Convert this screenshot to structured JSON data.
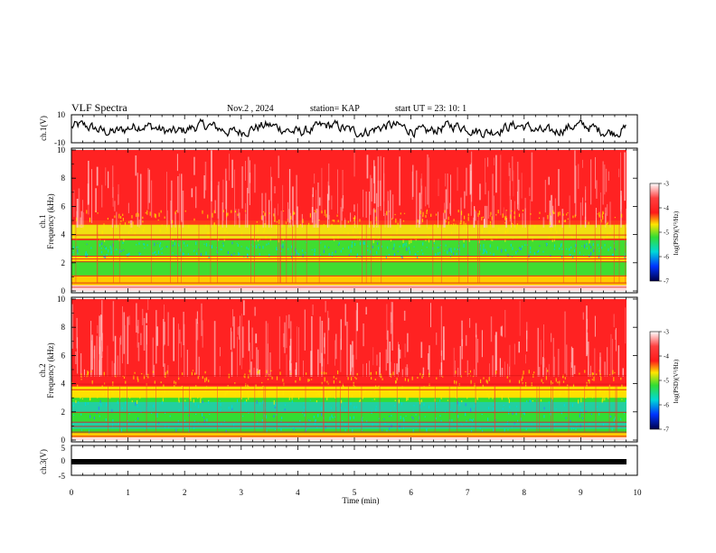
{
  "header": {
    "title": "VLF Spectra",
    "date": "Nov.2 , 2024",
    "station": "station= KAP",
    "start": "start UT = 23: 10: 1"
  },
  "chart_data": [
    {
      "type": "line",
      "name": "ch1-waveform",
      "ylabel": "ch.1(V)",
      "ylim": [
        -10,
        10
      ],
      "yticks": [
        "10",
        "-10"
      ],
      "xlim": [
        0,
        10
      ]
    },
    {
      "type": "heatmap",
      "name": "ch1-spectrogram",
      "ylabel": "ch.1 Frequency (kHz)",
      "ylim": [
        0,
        10
      ],
      "yticks": [
        "0",
        "2",
        "4",
        "6",
        "8",
        "10"
      ],
      "xlim": [
        0,
        10
      ],
      "colorbar": {
        "label": "log(PSD)(V²/Hz)",
        "range": [
          -7,
          -3
        ],
        "ticks": [
          "-3",
          "-4",
          "-5",
          "-6",
          "-7"
        ]
      }
    },
    {
      "type": "heatmap",
      "name": "ch2-spectrogram",
      "ylabel": "ch.2 Frequency (kHz)",
      "ylim": [
        0,
        10
      ],
      "yticks": [
        "0",
        "2",
        "4",
        "6",
        "8",
        "10"
      ],
      "xlim": [
        0,
        10
      ],
      "colorbar": {
        "label": "log(PSD)(V²/Hz)",
        "range": [
          -7,
          -3
        ],
        "ticks": [
          "-3",
          "-4",
          "-5",
          "-6",
          "-7"
        ]
      }
    },
    {
      "type": "line",
      "name": "ch3-waveform",
      "ylabel": "ch.3(V)",
      "ylim": [
        -5,
        5
      ],
      "yticks": [
        "5",
        "0",
        "-5"
      ],
      "xlim": [
        0,
        10
      ]
    }
  ],
  "xaxis": {
    "label": "Time (min)",
    "ticks": [
      "0",
      "1",
      "2",
      "3",
      "4",
      "5",
      "6",
      "7",
      "8",
      "9",
      "10"
    ]
  },
  "colors": {
    "red": "#ff1a1a",
    "yellow": "#ffe600",
    "green": "#33dd33",
    "cyan": "#00d8d8",
    "blue": "#0044ff",
    "navy": "#00007a"
  }
}
